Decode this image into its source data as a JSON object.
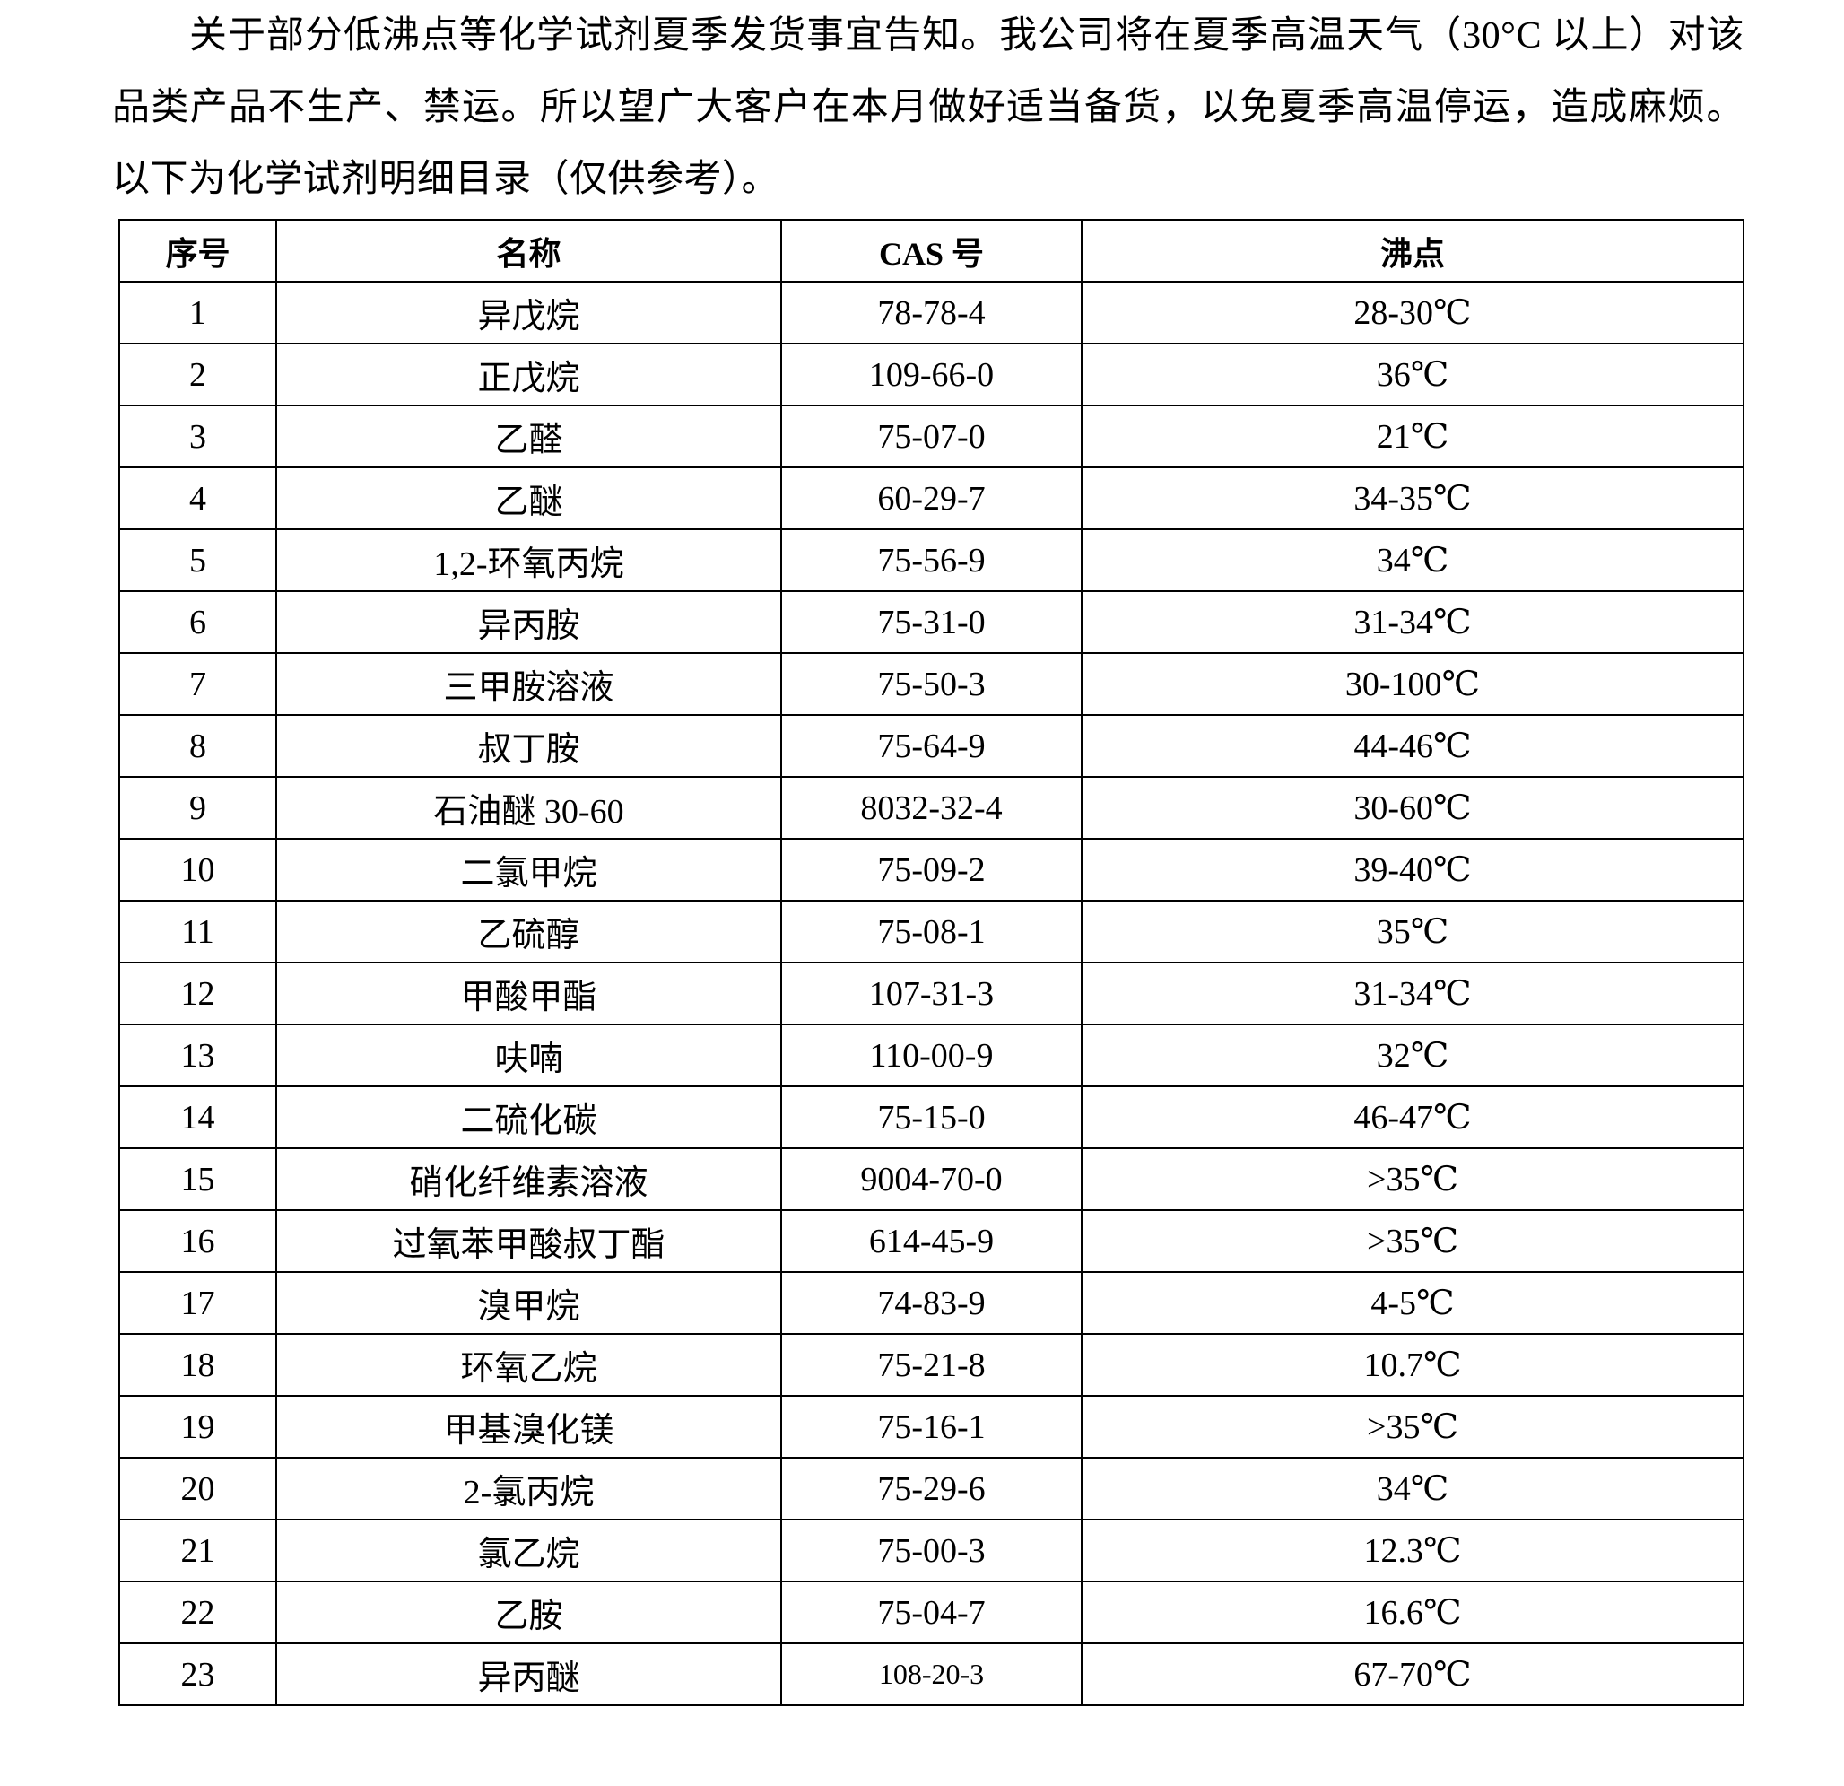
{
  "intro": "关于部分低沸点等化学试剂夏季发货事宜告知。我公司将在夏季高温天气（30°C 以上）对该品类产品不生产、禁运。所以望广大客户在本月做好适当备货，以免夏季高温停运，造成麻烦。以下为化学试剂明细目录（仅供参考）。",
  "table": {
    "headers": [
      "序号",
      "名称",
      "CAS 号",
      "沸点"
    ],
    "rows": [
      [
        "1",
        "异戊烷",
        "78-78-4",
        "28-30℃"
      ],
      [
        "2",
        "正戊烷",
        "109-66-0",
        "36℃"
      ],
      [
        "3",
        "乙醛",
        "75-07-0",
        "21℃"
      ],
      [
        "4",
        "乙醚",
        "60-29-7",
        "34-35℃"
      ],
      [
        "5",
        "1,2-环氧丙烷",
        "75-56-9",
        "34℃"
      ],
      [
        "6",
        "异丙胺",
        "75-31-0",
        "31-34℃"
      ],
      [
        "7",
        "三甲胺溶液",
        "75-50-3",
        "30-100℃"
      ],
      [
        "8",
        "叔丁胺",
        "75-64-9",
        "44-46℃"
      ],
      [
        "9",
        "石油醚 30-60",
        "8032-32-4",
        "30-60℃"
      ],
      [
        "10",
        "二氯甲烷",
        "75-09-2",
        "39-40℃"
      ],
      [
        "11",
        "乙硫醇",
        "75-08-1",
        "35℃"
      ],
      [
        "12",
        "甲酸甲酯",
        "107-31-3",
        "31-34℃"
      ],
      [
        "13",
        "呋喃",
        "110-00-9",
        "32℃"
      ],
      [
        "14",
        "二硫化碳",
        "75-15-0",
        "46-47℃"
      ],
      [
        "15",
        "硝化纤维素溶液",
        "9004-70-0",
        ">35℃"
      ],
      [
        "16",
        "过氧苯甲酸叔丁酯",
        "614-45-9",
        ">35℃"
      ],
      [
        "17",
        "溴甲烷",
        "74-83-9",
        "4-5℃"
      ],
      [
        "18",
        "环氧乙烷",
        "75-21-8",
        "10.7℃"
      ],
      [
        "19",
        "甲基溴化镁",
        "75-16-1",
        ">35℃"
      ],
      [
        "20",
        "2-氯丙烷",
        "75-29-6",
        "34℃"
      ],
      [
        "21",
        "氯乙烷",
        "75-00-3",
        "12.3℃"
      ],
      [
        "22",
        "乙胺",
        "75-04-7",
        "16.6℃"
      ],
      [
        "23",
        "异丙醚",
        "108-20-3",
        "67-70℃"
      ]
    ]
  }
}
